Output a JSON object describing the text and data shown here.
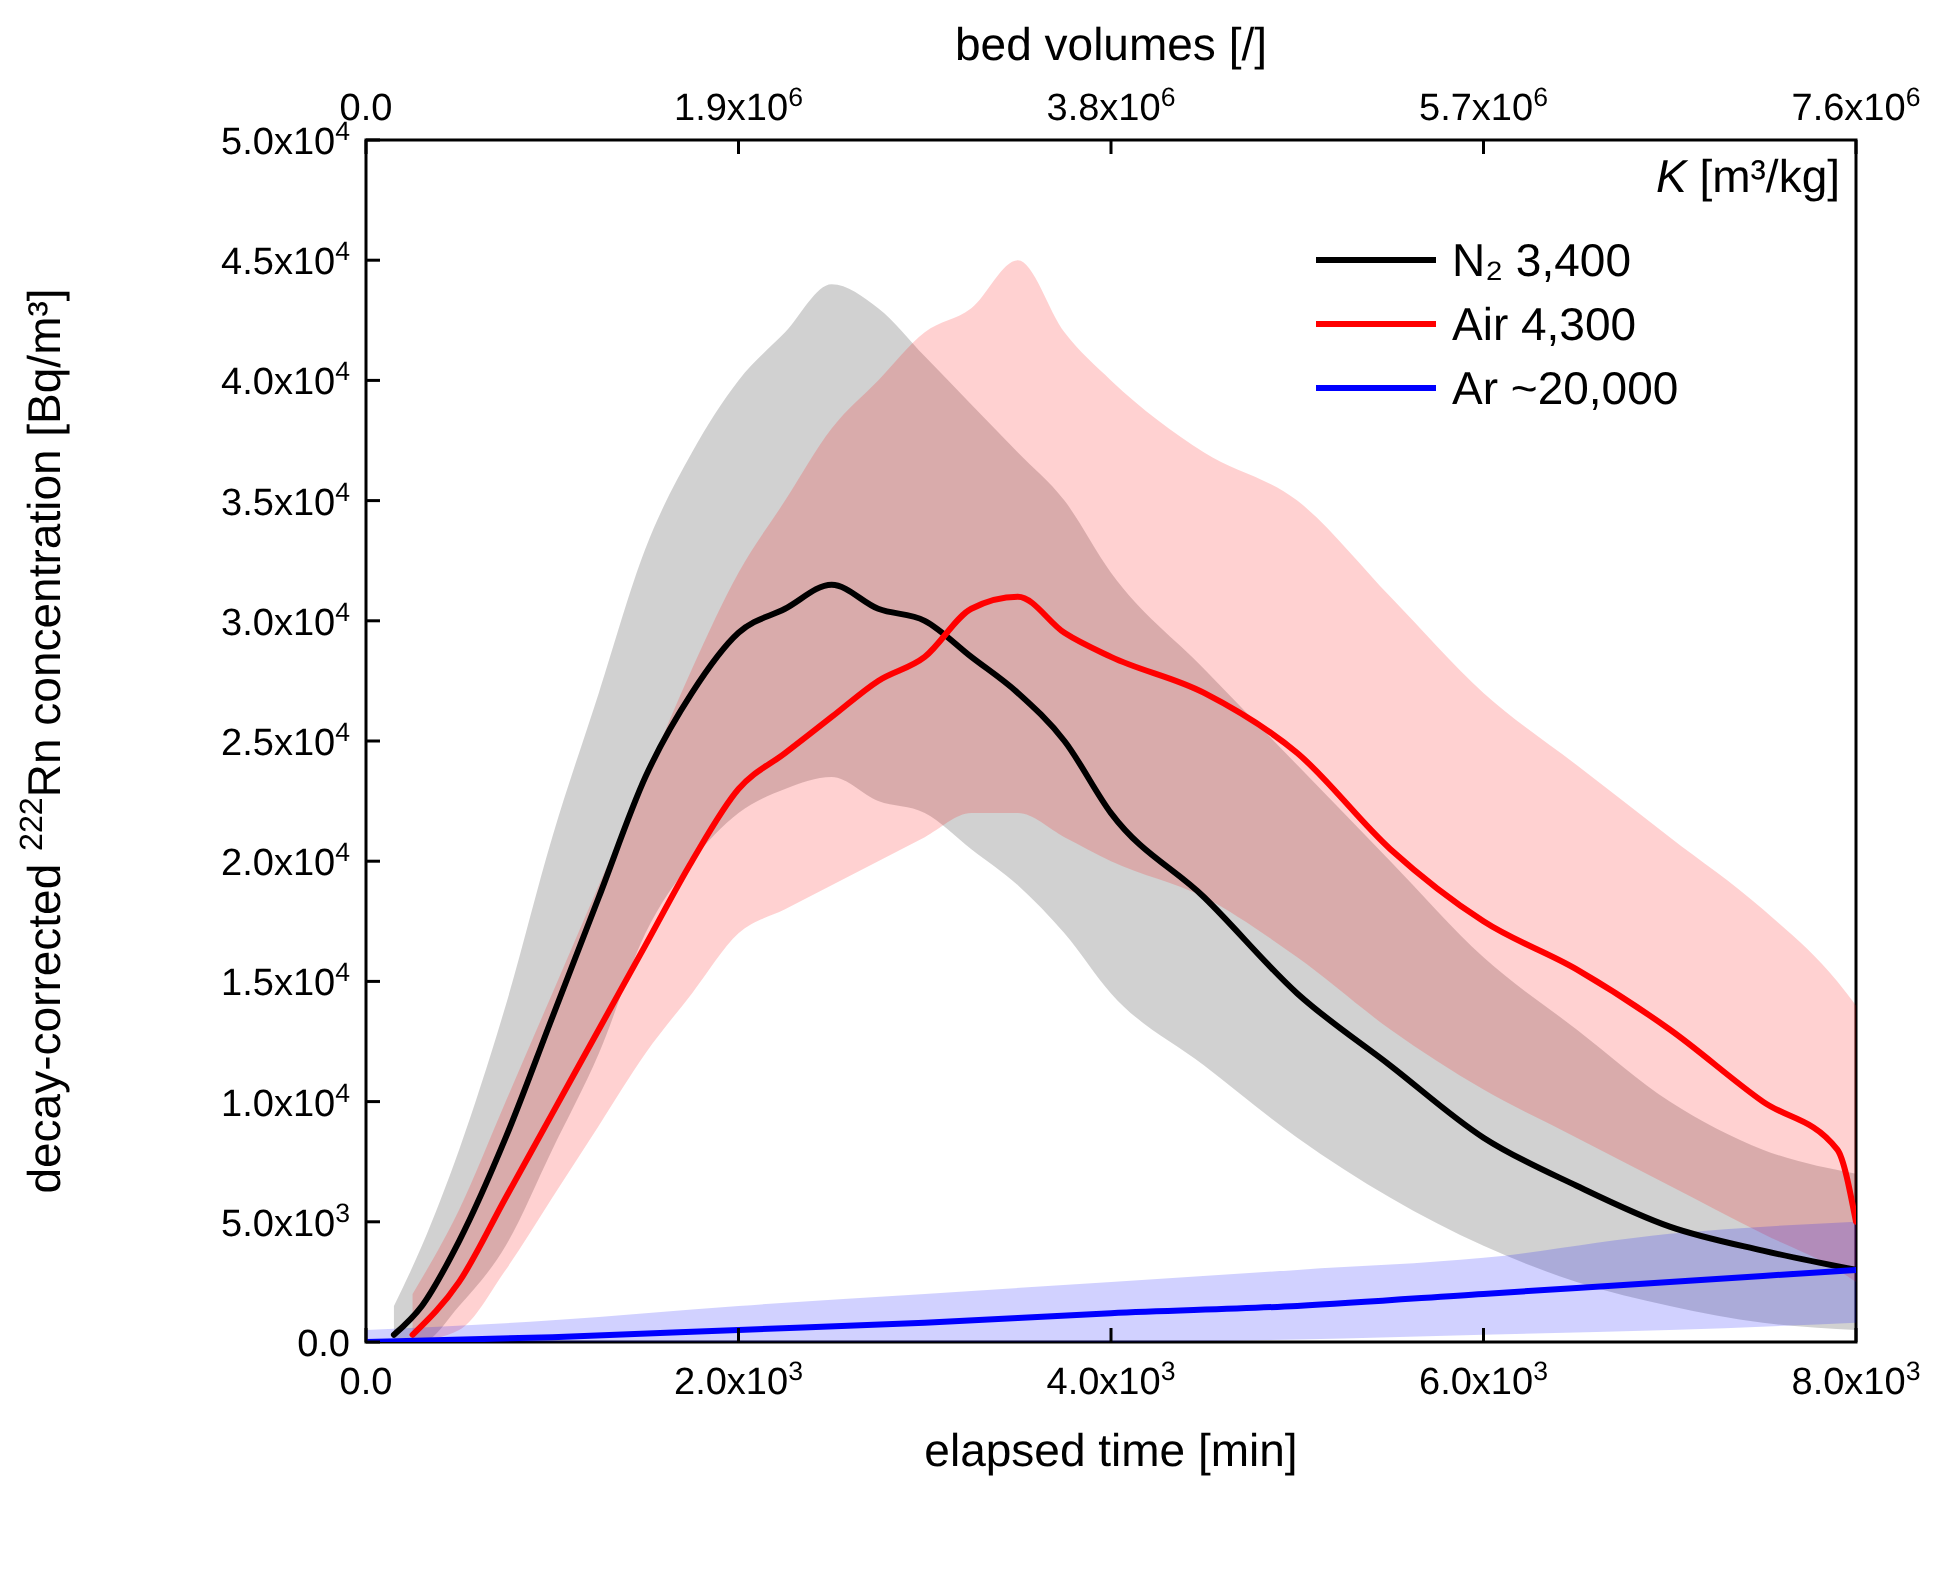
{
  "chart_data": {
    "type": "line",
    "xlabel": "elapsed time [min]",
    "ylabel": "decay-corrected $^{222}$Rn concentration [Bq/m³]",
    "x2label": "bed volumes [/]",
    "legend_title": "K [m³/kg]",
    "legend": "top right",
    "xlim": [
      0,
      8000
    ],
    "xticks": [
      {
        "value": 0,
        "label": "0.0"
      },
      {
        "value": 2000,
        "label": "2.0x10$^{3}$"
      },
      {
        "value": 4000,
        "label": "4.0x10$^{3}$"
      },
      {
        "value": 6000,
        "label": "6.0x10$^{3}$"
      },
      {
        "value": 8000,
        "label": "8.0x10$^{3}$"
      }
    ],
    "x2lim": [
      0,
      7600000
    ],
    "x2ticks": [
      {
        "value": 0,
        "label": "0.0"
      },
      {
        "value": 1900000,
        "label": "1.9x10$^{6}$"
      },
      {
        "value": 3800000,
        "label": "3.8x10$^{6}$"
      },
      {
        "value": 5700000,
        "label": "5.7x10$^{6}$"
      },
      {
        "value": 7600000,
        "label": "7.6x10$^{6}$"
      }
    ],
    "ylim": [
      0,
      50000
    ],
    "yticks": [
      {
        "value": 0,
        "label": "0.0"
      },
      {
        "value": 5000,
        "label": "5.0x10$^{3}$"
      },
      {
        "value": 10000,
        "label": "1.0x10$^{4}$"
      },
      {
        "value": 15000,
        "label": "1.5x10$^{4}$"
      },
      {
        "value": 20000,
        "label": "2.0x10$^{4}$"
      },
      {
        "value": 25000,
        "label": "2.5x10$^{4}$"
      },
      {
        "value": 30000,
        "label": "3.0x10$^{4}$"
      },
      {
        "value": 35000,
        "label": "3.5x10$^{4}$"
      },
      {
        "value": 40000,
        "label": "4.0x10$^{4}$"
      },
      {
        "value": 45000,
        "label": "4.5x10$^{4}$"
      },
      {
        "value": 50000,
        "label": "5.0x10$^{4}$"
      }
    ],
    "grid": false,
    "line_style": "solid",
    "marker": "none",
    "series": [
      {
        "name": "N₂ 3,400",
        "color": "#000000",
        "x": [
          150,
          300,
          500,
          750,
          1000,
          1250,
          1500,
          1750,
          2000,
          2250,
          2500,
          2750,
          3000,
          3250,
          3500,
          3750,
          4000,
          4500,
          5000,
          5500,
          6000,
          6500,
          7000,
          7500,
          8000
        ],
        "values": [
          300,
          1500,
          4200,
          8500,
          13500,
          18500,
          23500,
          27000,
          29500,
          30500,
          31500,
          30500,
          30000,
          28500,
          27000,
          25000,
          22000,
          18500,
          14500,
          11500,
          8500,
          6500,
          4800,
          3800,
          3000
        ],
        "lower": [
          0,
          0,
          1500,
          4000,
          8000,
          12000,
          17000,
          20000,
          22000,
          23000,
          23500,
          22500,
          22000,
          20500,
          19000,
          17000,
          14500,
          11500,
          8500,
          6000,
          4000,
          2500,
          1500,
          800,
          500
        ],
        "upper": [
          1500,
          4000,
          8000,
          14000,
          21000,
          27000,
          33000,
          37000,
          40000,
          42000,
          44000,
          43000,
          41000,
          39000,
          37000,
          35000,
          32000,
          28000,
          24000,
          20000,
          16000,
          13000,
          10000,
          8000,
          7000
        ]
      },
      {
        "name": "Air 4,300",
        "color": "#ff0000",
        "x": [
          250,
          500,
          750,
          1000,
          1250,
          1500,
          1750,
          2000,
          2250,
          2500,
          2750,
          3000,
          3250,
          3500,
          3750,
          4000,
          4500,
          5000,
          5500,
          6000,
          6500,
          7000,
          7500,
          7900,
          8000
        ],
        "values": [
          300,
          2500,
          6000,
          9500,
          13000,
          16500,
          20000,
          23000,
          24500,
          26000,
          27500,
          28500,
          30500,
          31000,
          29500,
          28500,
          27000,
          24500,
          20500,
          17500,
          15500,
          13000,
          10000,
          8000,
          5000
        ],
        "lower": [
          0,
          500,
          3000,
          6000,
          9000,
          12000,
          14500,
          17000,
          18000,
          19000,
          20000,
          21000,
          22000,
          22000,
          21000,
          20000,
          18500,
          16000,
          13000,
          10500,
          8500,
          6500,
          4500,
          3000,
          2500
        ],
        "upper": [
          2000,
          5500,
          10000,
          14500,
          19000,
          23500,
          28000,
          32000,
          35000,
          38000,
          40000,
          42000,
          43000,
          45000,
          42000,
          40000,
          37000,
          35000,
          31000,
          27000,
          24000,
          21000,
          18000,
          15000,
          14000
        ]
      },
      {
        "name": "Ar ~20,000",
        "color": "#0000ff",
        "x": [
          0,
          1000,
          2000,
          3000,
          4000,
          5000,
          6000,
          7000,
          8000
        ],
        "values": [
          0,
          200,
          500,
          800,
          1200,
          1500,
          2000,
          2500,
          3000
        ],
        "lower": [
          0,
          0,
          0,
          0,
          0,
          100,
          300,
          500,
          800
        ],
        "upper": [
          500,
          900,
          1500,
          2000,
          2500,
          3000,
          3500,
          4500,
          5000
        ]
      }
    ]
  }
}
